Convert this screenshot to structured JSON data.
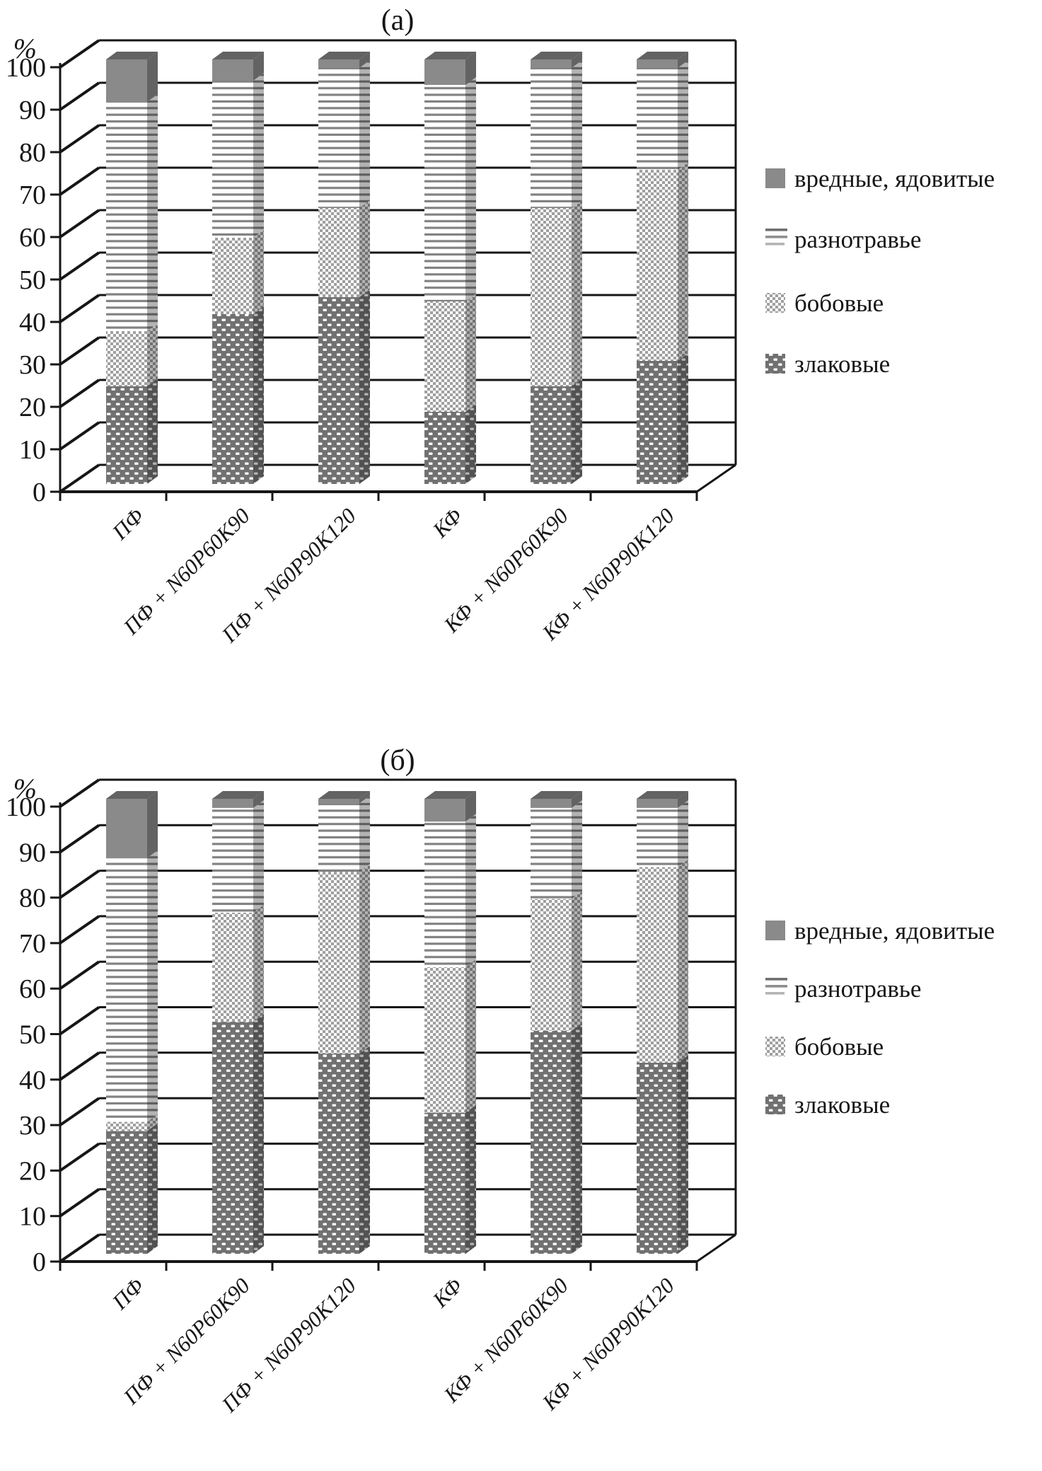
{
  "figure": {
    "legend_items": [
      "вредные, ядовитые",
      "разнотравье",
      "бобовые",
      "злаковые"
    ],
    "y_axis_unit": "%",
    "y_tick_labels": [
      "0",
      "10",
      "20",
      "30",
      "40",
      "50",
      "60",
      "70",
      "80",
      "90",
      "100"
    ]
  },
  "chart_data": [
    {
      "type": "bar",
      "stacked": true,
      "percent_stacked": true,
      "pseudo_3d": true,
      "title": "(а)",
      "ylabel": "%",
      "ylim": [
        0,
        100
      ],
      "ytick_step": 10,
      "grid": true,
      "legend_position": "right",
      "legend_order_top_to_bottom": [
        "вредные, ядовитые",
        "разнотравье",
        "бобовые",
        "злаковые"
      ],
      "categories": [
        "ПФ",
        "ПФ + N60P60K90",
        "ПФ + N60P90K120",
        "КФ",
        "КФ + N60P60K90",
        "КФ + N60P90K120"
      ],
      "series": [
        {
          "name": "злаковые",
          "pattern": "dots-dark",
          "values": [
            23,
            40,
            44,
            17,
            23,
            29
          ]
        },
        {
          "name": "бобовые",
          "pattern": "checker-light",
          "values": [
            13,
            18,
            21,
            26,
            42,
            45
          ]
        },
        {
          "name": "разнотравье",
          "pattern": "hlines",
          "values": [
            54,
            37,
            33,
            51,
            33,
            24
          ]
        },
        {
          "name": "вредные, ядовитые",
          "pattern": "solid-gray",
          "values": [
            10,
            5,
            2,
            6,
            2,
            2
          ]
        }
      ]
    },
    {
      "type": "bar",
      "stacked": true,
      "percent_stacked": true,
      "pseudo_3d": true,
      "title": "(б)",
      "ylabel": "%",
      "ylim": [
        0,
        100
      ],
      "ytick_step": 10,
      "grid": true,
      "legend_position": "right",
      "legend_order_top_to_bottom": [
        "вредные, ядовитые",
        "разнотравье",
        "бобовые",
        "злаковые"
      ],
      "categories": [
        "ПФ",
        "ПФ + N60P60K90",
        "ПФ + N60P90K120",
        "КФ",
        "КФ + N60P60K90",
        "КФ + N60P90K120"
      ],
      "series": [
        {
          "name": "злаковые",
          "pattern": "dots-dark",
          "values": [
            27,
            51,
            44,
            31,
            49,
            42
          ]
        },
        {
          "name": "бобовые",
          "pattern": "checker-light",
          "values": [
            2,
            24,
            40,
            32,
            29,
            43
          ]
        },
        {
          "name": "разнотравье",
          "pattern": "hlines",
          "values": [
            58,
            23,
            15,
            32,
            20,
            13
          ]
        },
        {
          "name": "вредные, ядовитые",
          "pattern": "solid-gray",
          "values": [
            13,
            2,
            1,
            5,
            2,
            2
          ]
        }
      ]
    }
  ],
  "colors": {
    "ink": "#161616",
    "cap_front": "#8a8a8a",
    "cap_top": "#636363",
    "dots_bg": "#717171",
    "checker_gray": "#9f9f9f",
    "hline_gray": "#828282",
    "legend_line_dark": "#6f6f6f",
    "legend_line_mid": "#8e8e8e",
    "legend_line_light": "#b4b4b4"
  }
}
